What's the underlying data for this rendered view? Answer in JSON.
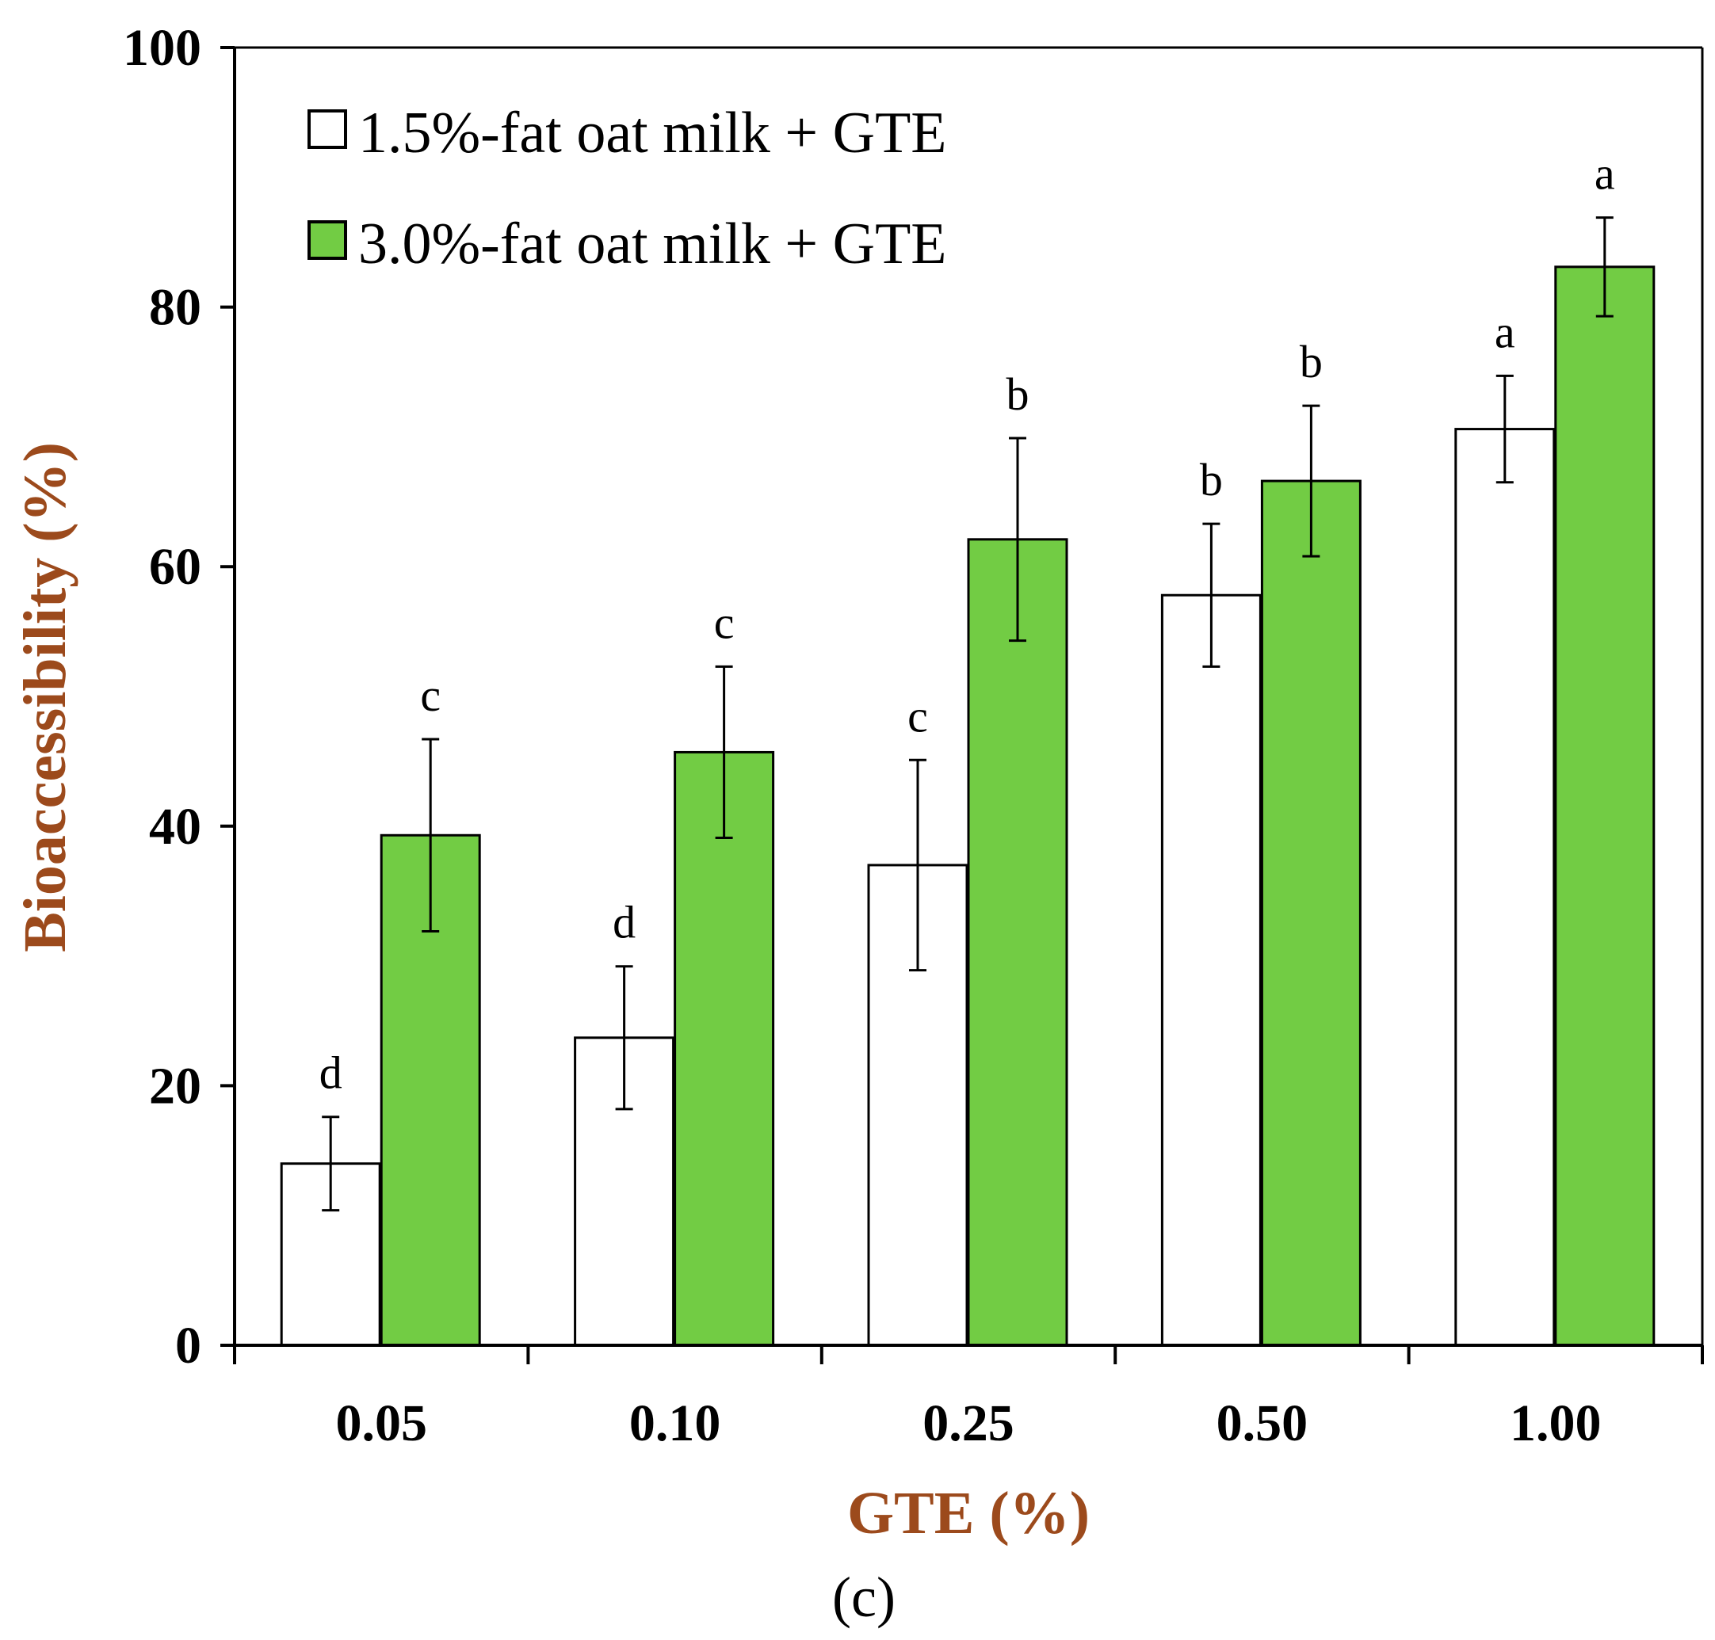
{
  "chart_data": {
    "type": "bar",
    "title": "",
    "panel_label": "(c)",
    "xlabel": "GTE (%)",
    "ylabel": "Bioaccessibility (%)",
    "ylim": [
      0,
      100
    ],
    "yticks": [
      "0",
      "20",
      "40",
      "60",
      "80",
      "100"
    ],
    "categories": [
      "0.05",
      "0.10",
      "0.25",
      "0.50",
      "1.00"
    ],
    "legend_position": "top-left",
    "grid": false,
    "colors": {
      "axis_title": "#9c4a1c",
      "series_green": "#72cc44",
      "series_white": "#ffffff",
      "stroke": "#000000"
    },
    "series": [
      {
        "name": "1.5%-fat oat milk + GTE",
        "color": "#ffffff",
        "values": [
          14,
          23.7,
          37,
          57.8,
          70.6
        ],
        "errors": [
          3.6,
          5.5,
          8.1,
          5.5,
          4.1
        ],
        "letters": [
          "d",
          "d",
          "c",
          "b",
          "a"
        ]
      },
      {
        "name": "3.0%-fat oat milk + GTE",
        "color": "#72cc44",
        "values": [
          39.3,
          45.7,
          62.1,
          66.6,
          83.1
        ],
        "errors": [
          7.4,
          6.6,
          7.8,
          5.8,
          3.8
        ],
        "letters": [
          "c",
          "c",
          "b",
          "b",
          "a"
        ]
      }
    ]
  }
}
